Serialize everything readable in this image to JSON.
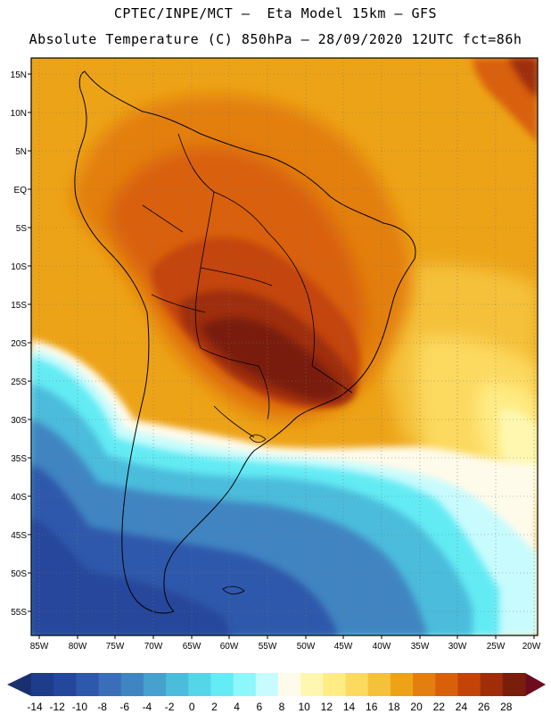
{
  "title_line1": "CPTEC/INPE/MCT –  Eta Model 15km – GFS",
  "title_line2": "Absolute Temperature (C) 850hPa – 28/09/2020 12UTC fct=86h",
  "lat_labels": [
    "15N",
    "10N",
    "5N",
    "EQ",
    "5S",
    "10S",
    "15S",
    "20S",
    "25S",
    "30S",
    "35S",
    "40S",
    "45S",
    "50S",
    "55S"
  ],
  "lon_labels": [
    "85W",
    "80W",
    "75W",
    "70W",
    "65W",
    "60W",
    "55W",
    "50W",
    "45W",
    "40W",
    "35W",
    "30W",
    "25W",
    "20W"
  ],
  "colorbar": {
    "labels": [
      "-14",
      "-12",
      "-10",
      "-8",
      "-6",
      "-4",
      "-2",
      "0",
      "2",
      "4",
      "6",
      "8",
      "10",
      "12",
      "14",
      "16",
      "18",
      "20",
      "22",
      "24",
      "26",
      "28"
    ],
    "colors": [
      "#1d3c8a",
      "#25479b",
      "#2d58ab",
      "#3a6eb9",
      "#3f85c2",
      "#46a1cf",
      "#4cbcdc",
      "#55d6e8",
      "#64ebf4",
      "#8df7fb",
      "#c8fbfd",
      "#fffbea",
      "#fff7b0",
      "#ffec85",
      "#fcd95f",
      "#f5c13b",
      "#eda317",
      "#e37f10",
      "#d9600a",
      "#c44408",
      "#9e2e0a",
      "#7a1e0c"
    ],
    "low_arrow_color": "#1a2f6e",
    "high_arrow_color": "#6e0b1e"
  },
  "map_colors": {
    "ocean_warm": "#eda317",
    "hot_core": "#8a2410",
    "cold_deep": "#24468e"
  }
}
